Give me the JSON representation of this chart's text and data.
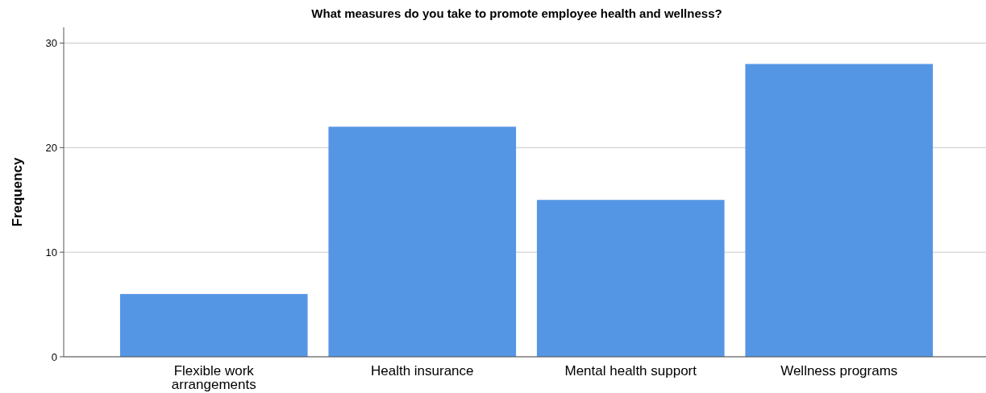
{
  "chart_data": {
    "type": "bar",
    "title": "What measures do you take to promote employee health and wellness?",
    "ylabel": "Frequency",
    "categories": [
      "Flexible work arrangements",
      "Health insurance",
      "Mental health support",
      "Wellness programs"
    ],
    "values": [
      6,
      22,
      15,
      28
    ],
    "color": "#5596e4",
    "ylim": [
      0,
      31.5
    ],
    "yticks": [
      0,
      10,
      20,
      30
    ],
    "grid": "y"
  }
}
